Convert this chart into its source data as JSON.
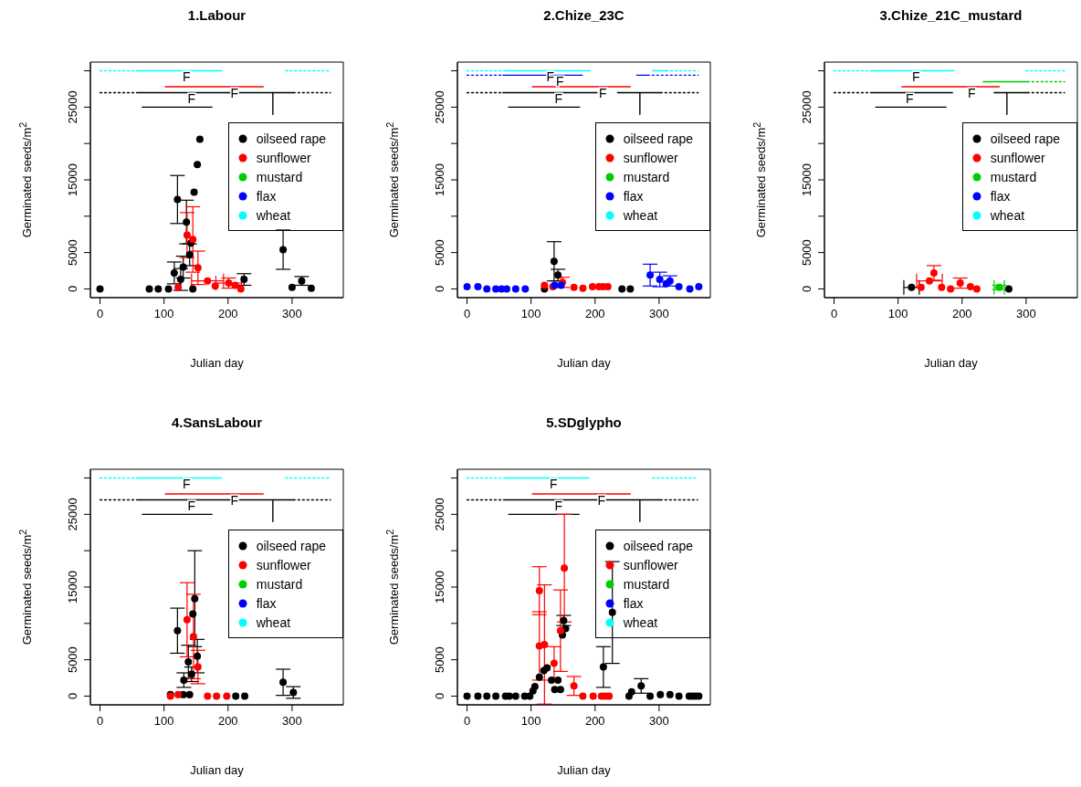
{
  "chart_data": [
    {
      "type": "scatter",
      "title": "1.Labour",
      "xlabel": "Julian day",
      "ylabel": "Germinated seeds/m$^{2}$",
      "xlim": [
        -15,
        380
      ],
      "ylim": [
        -1200,
        31200
      ],
      "xticks": [
        0,
        100,
        200,
        300
      ],
      "yticks": [
        0,
        5000,
        {
          "value": 10000,
          "label": null
        },
        15000,
        {
          "value": 20000,
          "label": null
        },
        25000,
        {
          "value": 30000,
          "label": null
        }
      ],
      "legend": "right",
      "annotations": [
        {
          "text": "F",
          "x": 135,
          "y": 30000
        },
        {
          "text": "F",
          "x": 210,
          "y": 27800
        },
        {
          "text": "F",
          "x": 143,
          "y": 27000
        }
      ],
      "series": [
        {
          "type": "line",
          "color": "#00ffff",
          "line_style": "dotted",
          "x": [
            0,
            60
          ],
          "values": [
            30000,
            30000
          ]
        },
        {
          "type": "line",
          "color": "#00ffff",
          "line_style": "solid",
          "x": [
            60,
            190
          ],
          "values": [
            30000,
            30000
          ]
        },
        {
          "type": "line",
          "color": "#00ffff",
          "line_style": "dotted",
          "x": [
            290,
            360
          ],
          "values": [
            30000,
            30000
          ]
        },
        {
          "type": "line",
          "color": "#ff0000",
          "line_style": "solid",
          "x": [
            102,
            255
          ],
          "values": [
            27800,
            27800
          ]
        },
        {
          "type": "line",
          "color": "#000000",
          "line_style": "dotted",
          "x": [
            0,
            57
          ],
          "values": [
            27000,
            27000
          ]
        },
        {
          "type": "line",
          "color": "#000000",
          "line_style": "solid",
          "x": [
            57,
            302
          ],
          "values": [
            27000,
            27000
          ]
        },
        {
          "type": "line",
          "color": "#000000",
          "line_style": "dotted",
          "x": [
            302,
            360
          ],
          "values": [
            27000,
            27000
          ]
        },
        {
          "type": "line",
          "color": "#000000",
          "line_style": "solid",
          "x": [
            270,
            270
          ],
          "values": [
            24000,
            27000
          ]
        },
        {
          "type": "line",
          "color": "#000000",
          "line_style": "solid",
          "x": [
            66,
            175
          ],
          "values": [
            25000,
            25000
          ]
        },
        {
          "name": "oilseed rape",
          "color": "#000000",
          "marker": "circle",
          "x": [
            0,
            77,
            91,
            107,
            116,
            121,
            126,
            130,
            135,
            140,
            142,
            145,
            147,
            152,
            156,
            225,
            286,
            300,
            315,
            330
          ],
          "values": [
            0,
            0,
            0,
            0,
            2200,
            12300,
            1300,
            3000,
            9200,
            4700,
            6300,
            0,
            13300,
            17100,
            20600,
            1300,
            5400,
            200,
            1100,
            100
          ],
          "errors": [
            null,
            null,
            null,
            null,
            1500,
            3300,
            1500,
            1500,
            3000,
            1500,
            null,
            null,
            null,
            null,
            null,
            800,
            2700,
            null,
            600,
            null
          ]
        },
        {
          "name": "sunflower",
          "color": "#ff0000",
          "marker": "circle",
          "x": [
            122,
            136,
            145,
            153,
            168,
            180,
            201,
            211,
            220
          ],
          "values": [
            200,
            7400,
            6800,
            2900,
            1100,
            400,
            800,
            500,
            0
          ],
          "errors": [
            null,
            3100,
            4500,
            2300,
            null,
            null,
            700,
            null,
            null
          ],
          "xerrors": [
            null,
            null,
            null,
            null,
            25,
            null,
            20,
            null,
            null
          ]
        },
        {
          "name": "mustard",
          "color": "#00cd00"
        },
        {
          "name": "flax",
          "color": "#0000ff"
        },
        {
          "name": "wheat",
          "color": "#00ffff"
        }
      ]
    },
    {
      "type": "scatter",
      "title": "2.Chize_23C",
      "xlabel": "Julian day",
      "ylabel": "Germinated seeds/m$^{2}$",
      "xlim": [
        -15,
        380
      ],
      "ylim": [
        -1200,
        31200
      ],
      "xticks": [
        0,
        100,
        200,
        300
      ],
      "yticks": [
        0,
        5000,
        {
          "value": 10000,
          "label": null
        },
        15000,
        {
          "value": 20000,
          "label": null
        },
        25000,
        {
          "value": 30000,
          "label": null
        }
      ],
      "legend": "right",
      "annotations": [
        {
          "text": "F",
          "x": 130,
          "y": 30000
        },
        {
          "text": "F",
          "x": 145,
          "y": 29400
        },
        {
          "text": "F",
          "x": 212,
          "y": 27800
        },
        {
          "text": "F",
          "x": 143,
          "y": 27000
        }
      ],
      "series": [
        {
          "type": "line",
          "color": "#00ffff",
          "line_style": "dotted",
          "x": [
            0,
            57
          ],
          "values": [
            30000,
            30000
          ]
        },
        {
          "type": "line",
          "color": "#00ffff",
          "line_style": "solid",
          "x": [
            57,
            192
          ],
          "values": [
            30000,
            30000
          ]
        },
        {
          "type": "line",
          "color": "#00ffff",
          "line_style": "solid",
          "x": [
            290,
            311
          ],
          "values": [
            30000,
            30000
          ]
        },
        {
          "type": "line",
          "color": "#00ffff",
          "line_style": "dotted",
          "x": [
            311,
            361
          ],
          "values": [
            30000,
            30000
          ]
        },
        {
          "type": "line",
          "color": "#0000ff",
          "line_style": "dotted",
          "x": [
            0,
            56
          ],
          "values": [
            29400,
            29400
          ]
        },
        {
          "type": "line",
          "color": "#0000ff",
          "line_style": "solid",
          "x": [
            56,
            180
          ],
          "values": [
            29400,
            29400
          ]
        },
        {
          "type": "line",
          "color": "#0000ff",
          "line_style": "solid",
          "x": [
            265,
            282
          ],
          "values": [
            29400,
            29400
          ]
        },
        {
          "type": "line",
          "color": "#0000ff",
          "line_style": "dotted",
          "x": [
            282,
            361
          ],
          "values": [
            29400,
            29400
          ]
        },
        {
          "type": "line",
          "color": "#ff0000",
          "line_style": "solid",
          "x": [
            102,
            255
          ],
          "values": [
            27800,
            27800
          ]
        },
        {
          "type": "line",
          "color": "#000000",
          "line_style": "dotted",
          "x": [
            0,
            56
          ],
          "values": [
            27000,
            27000
          ]
        },
        {
          "type": "line",
          "color": "#000000",
          "line_style": "solid",
          "x": [
            56,
            203
          ],
          "values": [
            27000,
            27000
          ]
        },
        {
          "type": "line",
          "color": "#000000",
          "line_style": "solid",
          "x": [
            235,
            302
          ],
          "values": [
            27000,
            27000
          ]
        },
        {
          "type": "line",
          "color": "#000000",
          "line_style": "dotted",
          "x": [
            302,
            361
          ],
          "values": [
            27000,
            27000
          ]
        },
        {
          "type": "line",
          "color": "#000000",
          "line_style": "solid",
          "x": [
            270,
            270
          ],
          "values": [
            24000,
            27000
          ]
        },
        {
          "type": "line",
          "color": "#000000",
          "line_style": "solid",
          "x": [
            65,
            176
          ],
          "values": [
            25000,
            25000
          ]
        },
        {
          "name": "oilseed rape",
          "color": "#000000",
          "marker": "circle",
          "x": [
            121,
            136,
            142,
            242,
            255
          ],
          "values": [
            0,
            3800,
            1900,
            0,
            0
          ],
          "errors": [
            null,
            2700,
            800,
            null,
            null
          ]
        },
        {
          "name": "sunflower",
          "color": "#ff0000",
          "marker": "circle",
          "x": [
            121,
            134,
            149,
            167,
            181,
            196,
            206,
            213,
            220
          ],
          "values": [
            500,
            300,
            900,
            200,
            100,
            300,
            300,
            300,
            300
          ],
          "errors": [
            null,
            null,
            700,
            null,
            null,
            null,
            null,
            null,
            null
          ]
        },
        {
          "name": "mustard",
          "color": "#00cd00"
        },
        {
          "name": "flax",
          "color": "#0000ff",
          "marker": "circle",
          "x": [
            0,
            17,
            31,
            45,
            54,
            62,
            76,
            91,
            137,
            147,
            286,
            301,
            311,
            317,
            331,
            348,
            362
          ],
          "values": [
            300,
            300,
            0,
            0,
            0,
            0,
            0,
            0,
            500,
            500,
            1900,
            1300,
            700,
            1100,
            300,
            0,
            300
          ],
          "errors": [
            null,
            null,
            null,
            null,
            null,
            null,
            null,
            null,
            null,
            null,
            1500,
            1000,
            null,
            700,
            null,
            null,
            null
          ]
        },
        {
          "name": "wheat",
          "color": "#00ffff"
        }
      ]
    },
    {
      "type": "scatter",
      "title": "3.Chize_21C_mustard",
      "xlabel": "Julian day",
      "ylabel": "Germinated seeds/m$^{2}$",
      "xlim": [
        -15,
        380
      ],
      "ylim": [
        -1200,
        31200
      ],
      "xticks": [
        0,
        100,
        200,
        300
      ],
      "yticks": [
        0,
        5000,
        {
          "value": 10000,
          "label": null
        },
        15000,
        {
          "value": 20000,
          "label": null
        },
        25000,
        {
          "value": 30000,
          "label": null
        }
      ],
      "legend": "right",
      "annotations": [
        {
          "text": "F",
          "x": 128,
          "y": 30000
        },
        {
          "text": "F",
          "x": 215,
          "y": 27800
        },
        {
          "text": "F",
          "x": 118,
          "y": 27000
        }
      ],
      "series": [
        {
          "type": "line",
          "color": "#00ffff",
          "line_style": "dotted",
          "x": [
            0,
            57
          ],
          "values": [
            30000,
            30000
          ]
        },
        {
          "type": "line",
          "color": "#00ffff",
          "line_style": "solid",
          "x": [
            57,
            187
          ],
          "values": [
            30000,
            30000
          ]
        },
        {
          "type": "line",
          "color": "#00ffff",
          "line_style": "dotted",
          "x": [
            300,
            360
          ],
          "values": [
            30000,
            30000
          ]
        },
        {
          "type": "line",
          "color": "#00cd00",
          "line_style": "solid",
          "x": [
            233,
            302
          ],
          "values": [
            28500,
            28500
          ]
        },
        {
          "type": "line",
          "color": "#00cd00",
          "line_style": "dotted",
          "x": [
            302,
            360
          ],
          "values": [
            28500,
            28500
          ]
        },
        {
          "type": "line",
          "color": "#ff0000",
          "line_style": "solid",
          "x": [
            106,
            258
          ],
          "values": [
            27800,
            27800
          ]
        },
        {
          "type": "line",
          "color": "#000000",
          "line_style": "dotted",
          "x": [
            0,
            57
          ],
          "values": [
            27000,
            27000
          ]
        },
        {
          "type": "line",
          "color": "#000000",
          "line_style": "solid",
          "x": [
            57,
            185
          ],
          "values": [
            27000,
            27000
          ]
        },
        {
          "type": "line",
          "color": "#000000",
          "line_style": "solid",
          "x": [
            250,
            302
          ],
          "values": [
            27000,
            27000
          ]
        },
        {
          "type": "line",
          "color": "#000000",
          "line_style": "dotted",
          "x": [
            302,
            360
          ],
          "values": [
            27000,
            27000
          ]
        },
        {
          "type": "line",
          "color": "#000000",
          "line_style": "solid",
          "x": [
            270,
            270
          ],
          "values": [
            24000,
            27000
          ]
        },
        {
          "type": "line",
          "color": "#000000",
          "line_style": "solid",
          "x": [
            65,
            175
          ],
          "values": [
            25000,
            25000
          ]
        },
        {
          "name": "oilseed rape",
          "color": "#000000",
          "marker": "circle",
          "x": [
            121,
            273
          ],
          "values": [
            200,
            0
          ],
          "xerrors": [
            12,
            null
          ]
        },
        {
          "name": "sunflower",
          "color": "#ff0000",
          "marker": "circle",
          "x": [
            136,
            149,
            156,
            168,
            182,
            197,
            213,
            223
          ],
          "values": [
            200,
            1100,
            2200,
            200,
            0,
            800,
            300,
            0
          ],
          "errors": [
            null,
            null,
            1000,
            null,
            null,
            700,
            null,
            null
          ],
          "xerrors": [
            null,
            20,
            null,
            null,
            null,
            null,
            null,
            null
          ]
        },
        {
          "name": "mustard",
          "color": "#00cd00",
          "marker": "circle",
          "x": [
            258
          ],
          "values": [
            200
          ],
          "errors": [
            300
          ],
          "xerrors": [
            8
          ]
        },
        {
          "name": "flax",
          "color": "#0000ff"
        },
        {
          "name": "wheat",
          "color": "#00ffff"
        }
      ]
    },
    {
      "type": "scatter",
      "title": "4.SansLabour",
      "xlabel": "Julian day",
      "ylabel": "Germinated seeds/m$^{2}$",
      "xlim": [
        -15,
        380
      ],
      "ylim": [
        -1200,
        31200
      ],
      "xticks": [
        0,
        100,
        200,
        300
      ],
      "yticks": [
        0,
        5000,
        {
          "value": 10000,
          "label": null
        },
        15000,
        {
          "value": 20000,
          "label": null
        },
        25000,
        {
          "value": 30000,
          "label": null
        }
      ],
      "legend": "right",
      "annotations": [
        {
          "text": "F",
          "x": 135,
          "y": 30000
        },
        {
          "text": "F",
          "x": 210,
          "y": 27800
        },
        {
          "text": "F",
          "x": 143,
          "y": 27000
        }
      ],
      "series": [
        {
          "type": "line",
          "color": "#00ffff",
          "line_style": "dotted",
          "x": [
            0,
            60
          ],
          "values": [
            30000,
            30000
          ]
        },
        {
          "type": "line",
          "color": "#00ffff",
          "line_style": "solid",
          "x": [
            60,
            190
          ],
          "values": [
            30000,
            30000
          ]
        },
        {
          "type": "line",
          "color": "#00ffff",
          "line_style": "dotted",
          "x": [
            290,
            360
          ],
          "values": [
            30000,
            30000
          ]
        },
        {
          "type": "line",
          "color": "#ff0000",
          "line_style": "solid",
          "x": [
            102,
            255
          ],
          "values": [
            27800,
            27800
          ]
        },
        {
          "type": "line",
          "color": "#000000",
          "line_style": "dotted",
          "x": [
            0,
            57
          ],
          "values": [
            27000,
            27000
          ]
        },
        {
          "type": "line",
          "color": "#000000",
          "line_style": "solid",
          "x": [
            57,
            302
          ],
          "values": [
            27000,
            27000
          ]
        },
        {
          "type": "line",
          "color": "#000000",
          "line_style": "dotted",
          "x": [
            302,
            360
          ],
          "values": [
            27000,
            27000
          ]
        },
        {
          "type": "line",
          "color": "#000000",
          "line_style": "solid",
          "x": [
            270,
            270
          ],
          "values": [
            24000,
            27000
          ]
        },
        {
          "type": "line",
          "color": "#000000",
          "line_style": "solid",
          "x": [
            66,
            175
          ],
          "values": [
            25000,
            25000
          ]
        },
        {
          "name": "oilseed rape",
          "color": "#000000",
          "marker": "circle",
          "x": [
            110,
            121,
            130,
            131,
            138,
            140,
            143,
            145,
            148,
            152,
            212,
            226,
            286,
            302
          ],
          "values": [
            200,
            9000,
            200,
            2200,
            4700,
            200,
            3000,
            11300,
            13400,
            5500,
            0,
            0,
            1900,
            500
          ],
          "errors": [
            null,
            3100,
            null,
            1000,
            2300,
            null,
            1000,
            null,
            6600,
            2300,
            null,
            null,
            1800,
            800
          ]
        },
        {
          "name": "sunflower",
          "color": "#ff0000",
          "marker": "circle",
          "x": [
            110,
            122,
            136,
            146,
            153,
            168,
            182,
            198
          ],
          "values": [
            0,
            200,
            10500,
            8200,
            4000,
            0,
            0,
            0
          ],
          "errors": [
            null,
            null,
            5100,
            5800,
            2300,
            null,
            null,
            null
          ]
        },
        {
          "name": "mustard",
          "color": "#00cd00"
        },
        {
          "name": "flax",
          "color": "#0000ff"
        },
        {
          "name": "wheat",
          "color": "#00ffff"
        }
      ]
    },
    {
      "type": "scatter",
      "title": "5.SDglypho",
      "xlabel": "Julian day",
      "ylabel": "Germinated seeds/m$^{2}$",
      "xlim": [
        -15,
        380
      ],
      "ylim": [
        -1200,
        31200
      ],
      "xticks": [
        0,
        100,
        200,
        300
      ],
      "yticks": [
        0,
        5000,
        {
          "value": 10000,
          "label": null
        },
        15000,
        {
          "value": 20000,
          "label": null
        },
        25000,
        {
          "value": 30000,
          "label": null
        }
      ],
      "legend": "right",
      "annotations": [
        {
          "text": "F",
          "x": 135,
          "y": 30000
        },
        {
          "text": "F",
          "x": 210,
          "y": 27800
        },
        {
          "text": "F",
          "x": 143,
          "y": 27000
        }
      ],
      "series": [
        {
          "type": "line",
          "color": "#00ffff",
          "line_style": "dotted",
          "x": [
            0,
            60
          ],
          "values": [
            30000,
            30000
          ]
        },
        {
          "type": "line",
          "color": "#00ffff",
          "line_style": "solid",
          "x": [
            60,
            190
          ],
          "values": [
            30000,
            30000
          ]
        },
        {
          "type": "line",
          "color": "#00ffff",
          "line_style": "dotted",
          "x": [
            290,
            360
          ],
          "values": [
            30000,
            30000
          ]
        },
        {
          "type": "line",
          "color": "#ff0000",
          "line_style": "solid",
          "x": [
            102,
            255
          ],
          "values": [
            27800,
            27800
          ]
        },
        {
          "type": "line",
          "color": "#000000",
          "line_style": "dotted",
          "x": [
            0,
            57
          ],
          "values": [
            27000,
            27000
          ]
        },
        {
          "type": "line",
          "color": "#000000",
          "line_style": "solid",
          "x": [
            57,
            302
          ],
          "values": [
            27000,
            27000
          ]
        },
        {
          "type": "line",
          "color": "#000000",
          "line_style": "dotted",
          "x": [
            302,
            360
          ],
          "values": [
            27000,
            27000
          ]
        },
        {
          "type": "line",
          "color": "#000000",
          "line_style": "solid",
          "x": [
            270,
            270
          ],
          "values": [
            24000,
            27000
          ]
        },
        {
          "type": "line",
          "color": "#000000",
          "line_style": "solid",
          "x": [
            65,
            175
          ],
          "values": [
            25000,
            25000
          ]
        },
        {
          "name": "oilseed rape",
          "color": "#000000",
          "marker": "circle",
          "x": [
            0,
            17,
            31,
            45,
            60,
            66,
            76,
            90,
            98,
            103,
            106,
            113,
            120,
            125,
            132,
            137,
            142,
            146,
            149,
            151,
            154,
            213,
            227,
            253,
            257,
            272,
            286,
            302,
            317,
            331,
            347,
            352,
            357,
            362
          ],
          "values": [
            0,
            0,
            0,
            0,
            0,
            0,
            0,
            0,
            0,
            700,
            1300,
            2600,
            3500,
            3900,
            2200,
            900,
            2200,
            900,
            8400,
            10400,
            9300,
            4000,
            11500,
            0,
            600,
            1400,
            0,
            200,
            200,
            0,
            0,
            0,
            0,
            0
          ],
          "errors": [
            null,
            null,
            null,
            null,
            null,
            null,
            null,
            null,
            null,
            null,
            null,
            null,
            null,
            null,
            null,
            null,
            null,
            null,
            null,
            700,
            null,
            2800,
            7000,
            null,
            null,
            1000,
            null,
            null,
            null,
            null,
            null,
            null,
            null,
            null
          ]
        },
        {
          "name": "sunflower",
          "color": "#ff0000",
          "marker": "circle",
          "x": [
            113,
            113,
            121,
            136,
            146,
            152,
            167,
            181,
            197,
            210,
            216,
            222
          ],
          "values": [
            14500,
            6900,
            7100,
            4500,
            9000,
            17600,
            1400,
            0,
            0,
            0,
            0,
            0
          ],
          "errors": [
            3300,
            4700,
            8200,
            2300,
            5600,
            7400,
            1300,
            null,
            null,
            null,
            null,
            null
          ]
        },
        {
          "name": "mustard",
          "color": "#00cd00"
        },
        {
          "name": "flax",
          "color": "#0000ff"
        },
        {
          "name": "wheat",
          "color": "#00ffff"
        }
      ]
    }
  ]
}
